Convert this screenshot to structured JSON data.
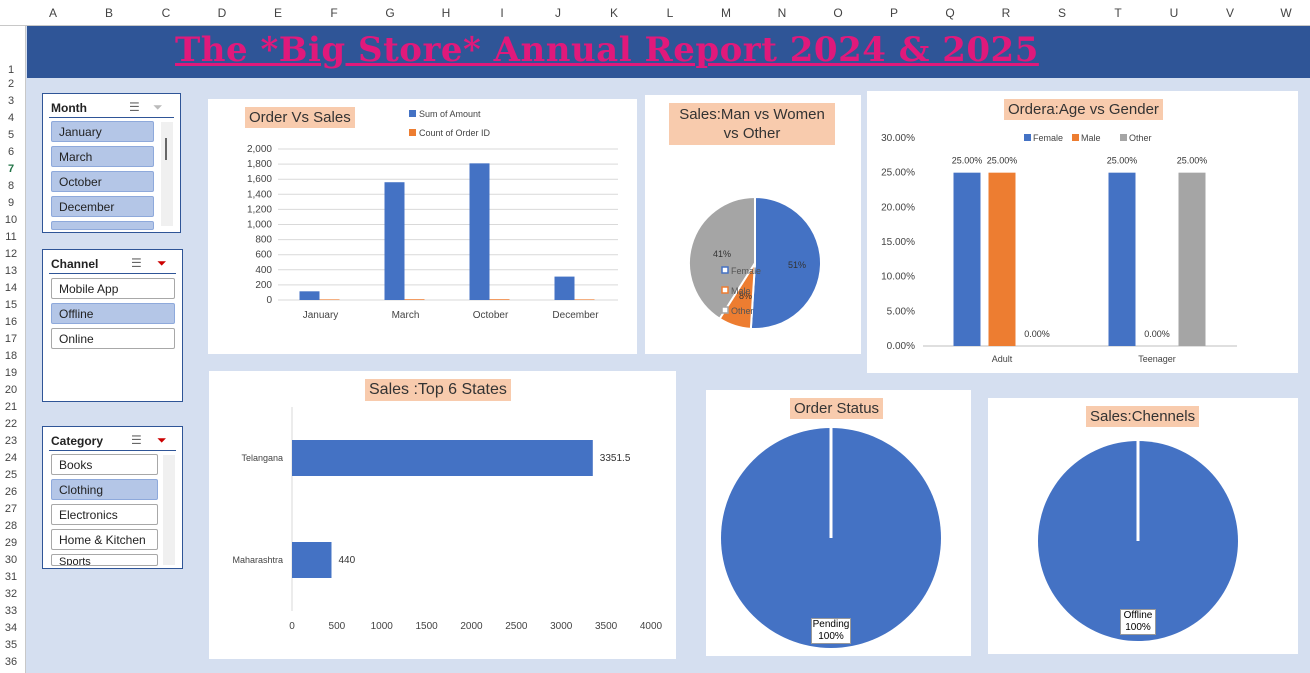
{
  "sheet": {
    "columns": [
      "A",
      "B",
      "C",
      "D",
      "E",
      "F",
      "G",
      "H",
      "I",
      "J",
      "K",
      "L",
      "M",
      "N",
      "O",
      "P",
      "Q",
      "R",
      "S",
      "T",
      "U",
      "V",
      "W"
    ],
    "rows": [
      "1",
      "2",
      "3",
      "4",
      "5",
      "6",
      "7",
      "8",
      "9",
      "10",
      "11",
      "12",
      "13",
      "14",
      "15",
      "16",
      "17",
      "18",
      "19",
      "20",
      "21",
      "22",
      "23",
      "24",
      "25",
      "26",
      "27",
      "28",
      "29",
      "30",
      "31",
      "32",
      "33",
      "34",
      "35",
      "36"
    ]
  },
  "title": "The *Big Store* Annual Report 2024 & 2025",
  "slicers": {
    "month": {
      "title": "Month",
      "items": [
        "January",
        "March",
        "October",
        "December"
      ]
    },
    "channel": {
      "title": "Channel",
      "items": [
        "Mobile App",
        "Offline",
        "Online"
      ]
    },
    "category": {
      "title": "Category",
      "items": [
        "Books",
        "Clothing",
        "Electronics",
        "Home & Kitchen",
        "Sports"
      ]
    }
  },
  "charts": {
    "order_sales": {
      "title": "Order Vs Sales",
      "legend": [
        "Sum of Amount",
        "Count of Order ID"
      ]
    },
    "sales_gender": {
      "title": "Sales:Man vs Women vs Other",
      "legend": [
        "Female",
        "Male",
        "Other"
      ]
    },
    "age_gender": {
      "title": "Ordera:Age vs Gender",
      "legend": [
        "Female",
        "Male",
        "Other"
      ]
    },
    "top_states": {
      "title": "Sales :Top 6  States"
    },
    "order_status": {
      "title": "Order Status",
      "label": "Pending",
      "pct": "100%"
    },
    "channels": {
      "title": "Sales:Chennels",
      "label": "Offline",
      "pct": "100%"
    }
  },
  "chart_data": [
    {
      "type": "bar",
      "title": "Order Vs Sales",
      "categories": [
        "January",
        "March",
        "October",
        "December"
      ],
      "series": [
        {
          "name": "Sum of Amount",
          "values": [
            115,
            1560,
            1810,
            310
          ]
        },
        {
          "name": "Count of Order ID",
          "values": [
            8,
            10,
            10,
            8
          ]
        }
      ],
      "yticks": [
        "0",
        "200",
        "400",
        "600",
        "800",
        "1,000",
        "1,200",
        "1,400",
        "1,600",
        "1,800",
        "2,000"
      ],
      "ylim": [
        0,
        2000
      ],
      "legend": "top-right",
      "colors": [
        "#4472c4",
        "#ed7d31"
      ]
    },
    {
      "type": "pie",
      "title": "Sales:Man vs Women vs Other",
      "labels": [
        "Female",
        "Male",
        "Other"
      ],
      "values": [
        51,
        8,
        41
      ],
      "data_labels": [
        "51%",
        "8%",
        "41%"
      ],
      "colors": [
        "#4472c4",
        "#ed7d31",
        "#a5a5a5"
      ]
    },
    {
      "type": "bar",
      "title": "Ordera:Age vs Gender",
      "categories": [
        "Adult",
        "Teenager"
      ],
      "series": [
        {
          "name": "Female",
          "values": [
            25,
            25
          ],
          "labels": [
            "25.00%",
            "25.00%"
          ]
        },
        {
          "name": "Male",
          "values": [
            25,
            0
          ],
          "labels": [
            "25.00%",
            "0.00%"
          ]
        },
        {
          "name": "Other",
          "values": [
            0,
            25
          ],
          "labels": [
            "0.00%",
            "25.00%"
          ]
        }
      ],
      "yticks": [
        "0.00%",
        "5.00%",
        "10.00%",
        "15.00%",
        "20.00%",
        "25.00%",
        "30.00%"
      ],
      "ylim": [
        0,
        30
      ],
      "legend": "top",
      "colors": [
        "#4472c4",
        "#ed7d31",
        "#a5a5a5"
      ]
    },
    {
      "type": "bar",
      "orientation": "horizontal",
      "title": "Sales :Top 6  States",
      "categories": [
        "Telangana",
        "Maharashtra"
      ],
      "values": [
        3351.5,
        440
      ],
      "data_labels": [
        "3351.5",
        "440"
      ],
      "xticks": [
        "0",
        "500",
        "1000",
        "1500",
        "2000",
        "2500",
        "3000",
        "3500",
        "4000"
      ],
      "xlim": [
        0,
        4000
      ],
      "colors": [
        "#4472c4"
      ]
    },
    {
      "type": "pie",
      "title": "Order Status",
      "labels": [
        "Pending"
      ],
      "values": [
        100
      ],
      "data_labels": [
        "100%"
      ],
      "colors": [
        "#4472c4"
      ]
    },
    {
      "type": "pie",
      "title": "Sales:Chennels",
      "labels": [
        "Offline"
      ],
      "values": [
        100
      ],
      "data_labels": [
        "100%"
      ],
      "colors": [
        "#4472c4"
      ]
    }
  ]
}
